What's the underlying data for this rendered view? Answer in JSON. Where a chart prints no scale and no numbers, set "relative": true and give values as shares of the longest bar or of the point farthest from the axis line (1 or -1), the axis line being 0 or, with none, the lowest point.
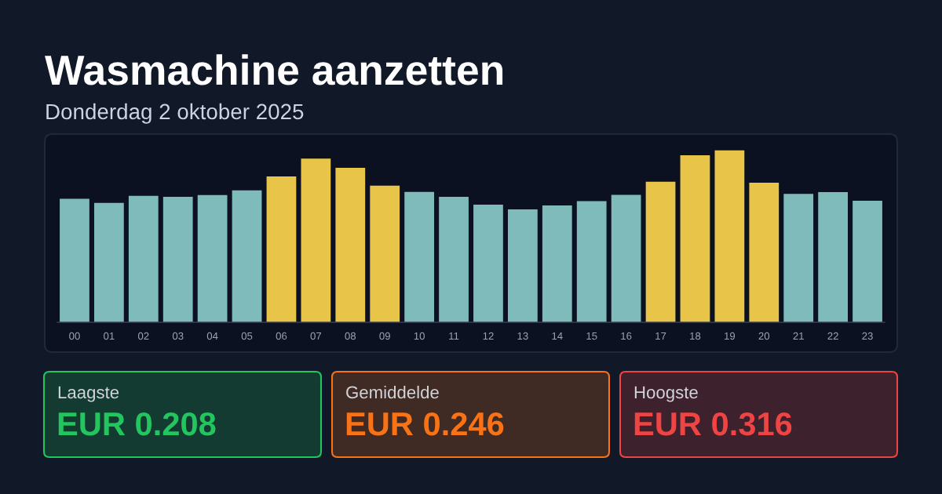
{
  "chart_data": [
    {
      "type": "bar",
      "title": "Wasmachine aanzetten",
      "subtitle": "Donderdag 2 oktober 2025",
      "relative": true,
      "categories": [
        "00",
        "01",
        "02",
        "03",
        "04",
        "05",
        "06",
        "07",
        "08",
        "09",
        "10",
        "11",
        "12",
        "13",
        "14",
        "15",
        "16",
        "17",
        "18",
        "19",
        "20",
        "21",
        "22",
        "23"
      ],
      "values": [
        0.718,
        0.694,
        0.735,
        0.729,
        0.74,
        0.767,
        0.848,
        0.952,
        0.898,
        0.794,
        0.758,
        0.729,
        0.684,
        0.656,
        0.679,
        0.704,
        0.741,
        0.817,
        0.971,
        1,
        0.811,
        0.747,
        0.757,
        0.707
      ],
      "colors": [
        "#7fbbba",
        "#7fbbba",
        "#7fbbba",
        "#7fbbba",
        "#7fbbba",
        "#7fbbba",
        "#e8c548",
        "#e8c548",
        "#e8c548",
        "#e8c548",
        "#7fbbba",
        "#7fbbba",
        "#7fbbba",
        "#7fbbba",
        "#7fbbba",
        "#7fbbba",
        "#7fbbba",
        "#e8c548",
        "#e8c548",
        "#e8c548",
        "#e8c548",
        "#7fbbba",
        "#7fbbba",
        "#7fbbba"
      ]
    },
    {
      "type": "other",
      "categories": [
        "Laagste",
        "Gemiddelde",
        "Hoogste"
      ],
      "value_labels": [
        "EUR 0.208",
        "EUR 0.246",
        "EUR 0.316"
      ],
      "colors": [
        "#22c55e",
        "#f97316",
        "#ef4444"
      ]
    }
  ]
}
